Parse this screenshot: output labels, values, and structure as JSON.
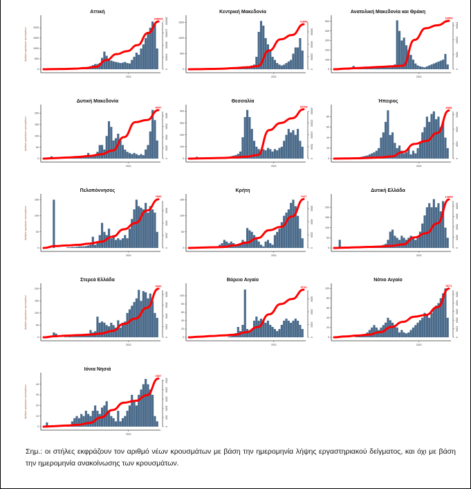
{
  "note": "Σημ.:  οι στήλες εκφράζουν τον αριθμό νέων κρουσμάτων με βάση την ημερομηνία λήψης εργαστηριακού δείγματος, και όχι με βάση την ημερομηνία ανακοίνωσης των κρουσμάτων.",
  "colors": {
    "bars": "#4a6a8a",
    "cumulative_line": "#ff0000",
    "title": "#111111"
  },
  "chart_data": [
    {
      "type": "bar+line",
      "title": "Αττική",
      "ylabel": "Αριθμός ημερήσιων κρουσμάτων",
      "x_tick": "2021",
      "yticks": [
        0,
        500,
        1000,
        1500,
        2000
      ],
      "ylim": [
        0,
        2400
      ],
      "y2ticks": [
        0,
        40000,
        80000,
        120000,
        160000
      ],
      "y2lim": [
        0,
        165000
      ],
      "end_label": "158000",
      "bars": [
        0,
        0,
        0,
        0,
        0,
        0,
        0,
        0,
        5,
        10,
        10,
        15,
        20,
        20,
        30,
        40,
        50,
        60,
        80,
        100,
        150,
        200,
        250,
        250,
        300,
        550,
        850,
        650,
        500,
        420,
        380,
        350,
        330,
        300,
        320,
        350,
        300,
        280,
        450,
        600,
        800,
        700,
        1000,
        1200,
        1500,
        1800,
        2000,
        2300,
        2200,
        1000
      ],
      "cumulative": [
        0,
        500,
        1000,
        2000,
        4000,
        8000,
        30000,
        50000,
        60000,
        80000,
        120000,
        158000
      ]
    },
    {
      "type": "bar+line",
      "title": "Κεντρική Μακεδονία",
      "ylabel": "",
      "x_tick": "2021",
      "yticks": [
        0,
        500,
        1000,
        1500
      ],
      "ylim": [
        0,
        1600
      ],
      "y2ticks": [
        0,
        20000,
        40000,
        60000
      ],
      "y2lim": [
        0,
        80000
      ],
      "end_label": "72050",
      "bars": [
        0,
        0,
        0,
        0,
        0,
        0,
        0,
        0,
        0,
        0,
        5,
        5,
        10,
        10,
        10,
        20,
        20,
        30,
        40,
        50,
        60,
        70,
        80,
        80,
        90,
        100,
        100,
        120,
        150,
        400,
        1200,
        1550,
        1400,
        1000,
        800,
        600,
        400,
        300,
        200,
        150,
        120,
        150,
        200,
        250,
        300,
        500,
        700,
        700,
        1000,
        600
      ],
      "cumulative": [
        0,
        200,
        500,
        1000,
        2000,
        3000,
        5000,
        30000,
        48000,
        55000,
        72050
      ]
    },
    {
      "type": "bar+line",
      "title": "Ανατολική Μακεδονία και Θράκη",
      "ylabel": "",
      "x_tick": "2021",
      "yticks": [
        0,
        100,
        200,
        300,
        400,
        500
      ],
      "ylim": [
        0,
        520
      ],
      "y2ticks": [
        0,
        5000,
        10000,
        15000
      ],
      "y2lim": [
        0,
        17000
      ],
      "end_label": "16500",
      "bars": [
        0,
        0,
        0,
        0,
        0,
        5,
        10,
        20,
        35,
        10,
        5,
        5,
        5,
        10,
        15,
        20,
        20,
        15,
        15,
        15,
        15,
        20,
        20,
        20,
        20,
        30,
        50,
        510,
        400,
        300,
        330,
        250,
        200,
        150,
        100,
        60,
        40,
        30,
        25,
        20,
        30,
        40,
        50,
        60,
        70,
        80,
        90,
        100,
        160,
        50
      ],
      "cumulative": [
        0,
        200,
        400,
        600,
        800,
        1000,
        1200,
        10000,
        14000,
        15000,
        16500
      ]
    },
    {
      "type": "bar+line",
      "title": "Δυτική Μακεδονία",
      "ylabel": "Αριθμός ημερήσιων κρουσμάτων",
      "x_tick": "2021",
      "yticks": [
        0,
        50,
        100,
        150,
        200
      ],
      "ylim": [
        0,
        220
      ],
      "y2ticks": [
        0,
        2000,
        4000,
        6000,
        8000
      ],
      "y2lim": [
        0,
        9300
      ],
      "end_label": "9047",
      "bars": [
        0,
        0,
        2,
        10,
        2,
        0,
        0,
        0,
        0,
        2,
        3,
        3,
        4,
        5,
        5,
        5,
        6,
        8,
        10,
        25,
        10,
        10,
        15,
        30,
        60,
        60,
        40,
        100,
        165,
        140,
        80,
        90,
        110,
        80,
        60,
        40,
        30,
        25,
        20,
        25,
        20,
        15,
        20,
        15,
        40,
        60,
        120,
        215,
        170,
        80
      ],
      "cumulative": [
        0,
        100,
        200,
        300,
        500,
        800,
        1500,
        4000,
        6800,
        7200,
        9047
      ]
    },
    {
      "type": "bar+line",
      "title": "Θεσσαλία",
      "ylabel": "",
      "x_tick": "2021",
      "yticks": [
        0,
        100,
        200,
        300,
        400
      ],
      "ylim": [
        0,
        420
      ],
      "y2ticks": [
        0,
        5000,
        10000,
        15000,
        20000
      ],
      "y2lim": [
        0,
        21000
      ],
      "end_label": "20768",
      "bars": [
        0,
        0,
        0,
        15,
        0,
        0,
        10,
        0,
        0,
        0,
        5,
        5,
        5,
        10,
        10,
        10,
        10,
        15,
        20,
        25,
        30,
        40,
        60,
        180,
        350,
        410,
        350,
        250,
        150,
        100,
        80,
        60,
        80,
        70,
        90,
        80,
        60,
        80,
        70,
        90,
        100,
        150,
        200,
        250,
        220,
        240,
        200,
        250,
        150,
        100
      ],
      "cumulative": [
        0,
        100,
        200,
        300,
        500,
        800,
        1500,
        12000,
        15000,
        17000,
        20768
      ]
    },
    {
      "type": "bar+line",
      "title": "Ήπειρος",
      "ylabel": "",
      "x_tick": "2021",
      "yticks": [
        0,
        20,
        40,
        60,
        80
      ],
      "ylim": [
        0,
        95
      ],
      "y2ticks": [
        0,
        2000,
        4000,
        6000
      ],
      "y2lim": [
        0,
        6800
      ],
      "end_label": "6558",
      "bars": [
        0,
        0,
        2,
        0,
        0,
        0,
        0,
        0,
        0,
        1,
        2,
        3,
        4,
        5,
        6,
        8,
        10,
        12,
        15,
        20,
        40,
        50,
        70,
        92,
        45,
        50,
        30,
        20,
        25,
        15,
        10,
        12,
        20,
        8,
        15,
        10,
        20,
        30,
        50,
        60,
        80,
        70,
        85,
        90,
        75,
        80,
        60,
        70,
        40,
        20
      ],
      "cumulative": [
        0,
        20,
        50,
        100,
        150,
        300,
        900,
        2000,
        2400,
        3500,
        6558
      ]
    },
    {
      "type": "bar+line",
      "title": "Πελοπόννησος",
      "ylabel": "Αριθμός ημερήσιων κρουσμάτων",
      "x_tick": "2021",
      "yticks": [
        0,
        50,
        100,
        150
      ],
      "ylim": [
        0,
        155
      ],
      "y2ticks": [
        0,
        2000,
        4000,
        6000
      ],
      "y2lim": [
        0,
        8000
      ],
      "end_label": "7806",
      "bars": [
        0,
        0,
        0,
        0,
        150,
        0,
        0,
        0,
        0,
        0,
        2,
        2,
        3,
        3,
        4,
        5,
        5,
        5,
        6,
        8,
        10,
        35,
        10,
        20,
        40,
        78,
        50,
        40,
        60,
        30,
        40,
        25,
        30,
        25,
        30,
        40,
        30,
        60,
        90,
        120,
        150,
        130,
        125,
        120,
        140,
        110,
        130,
        120,
        110,
        50
      ],
      "cumulative": [
        0,
        300,
        400,
        500,
        700,
        1000,
        1800,
        3000,
        4000,
        6000,
        7806
      ]
    },
    {
      "type": "bar+line",
      "title": "Κρήτη",
      "ylabel": "",
      "x_tick": "2021",
      "yticks": [
        0,
        50,
        100,
        150
      ],
      "ylim": [
        0,
        155
      ],
      "y2ticks": [
        0,
        2000,
        4000,
        6000
      ],
      "y2lim": [
        0,
        7600
      ],
      "end_label": "7447",
      "bars": [
        0,
        0,
        0,
        0,
        0,
        0,
        0,
        0,
        0,
        1,
        2,
        3,
        5,
        10,
        15,
        25,
        20,
        15,
        20,
        15,
        10,
        12,
        15,
        25,
        20,
        62,
        55,
        50,
        40,
        30,
        20,
        10,
        5,
        20,
        25,
        15,
        10,
        40,
        50,
        60,
        80,
        100,
        110,
        120,
        140,
        150,
        130,
        100,
        60,
        30
      ],
      "cumulative": [
        0,
        50,
        100,
        150,
        400,
        800,
        1500,
        2700,
        3200,
        4800,
        7447
      ]
    },
    {
      "type": "bar+line",
      "title": "Δυτική Ελλάδα",
      "ylabel": "",
      "x_tick": "2021",
      "yticks": [
        0,
        50,
        100,
        150,
        200
      ],
      "ylim": [
        0,
        245
      ],
      "y2ticks": [
        0,
        3000,
        6000,
        9000,
        12000
      ],
      "y2lim": [
        0,
        14200
      ],
      "end_label": "13808",
      "bars": [
        0,
        0,
        40,
        0,
        0,
        0,
        0,
        0,
        0,
        0,
        1,
        1,
        2,
        2,
        3,
        3,
        4,
        5,
        6,
        8,
        10,
        15,
        20,
        40,
        80,
        90,
        60,
        50,
        40,
        60,
        50,
        40,
        50,
        60,
        50,
        40,
        60,
        80,
        120,
        160,
        200,
        220,
        200,
        240,
        200,
        220,
        180,
        230,
        100,
        50
      ],
      "cumulative": [
        0,
        100,
        200,
        300,
        400,
        600,
        1000,
        3000,
        4200,
        7000,
        13808
      ]
    },
    {
      "type": "bar+line",
      "title": "Στερεά Ελλάδα",
      "ylabel": "Αριθμός ημερήσιων κρουσμάτων",
      "x_tick": "2021",
      "yticks": [
        0,
        50,
        100,
        150,
        200
      ],
      "ylim": [
        0,
        205
      ],
      "y2ticks": [
        0,
        2000,
        4000,
        6000,
        8000
      ],
      "y2lim": [
        0,
        9300
      ],
      "end_label": "9060",
      "bars": [
        0,
        0,
        0,
        0,
        20,
        15,
        0,
        0,
        0,
        2,
        2,
        3,
        3,
        4,
        5,
        5,
        6,
        8,
        10,
        15,
        30,
        20,
        25,
        85,
        60,
        65,
        60,
        50,
        45,
        60,
        50,
        40,
        70,
        40,
        60,
        65,
        100,
        115,
        130,
        145,
        160,
        195,
        150,
        190,
        185,
        160,
        180,
        150,
        100,
        80
      ],
      "cumulative": [
        0,
        200,
        300,
        400,
        500,
        700,
        1200,
        2500,
        3500,
        5500,
        9060
      ]
    },
    {
      "type": "bar+line",
      "title": "Βόρειο Αιγαίο",
      "ylabel": "",
      "x_tick": "2021",
      "yticks": [
        0,
        20,
        40,
        60,
        80,
        100
      ],
      "ylim": [
        0,
        120
      ],
      "y2ticks": [
        0,
        1000,
        2000,
        3000
      ],
      "y2lim": [
        0,
        3900
      ],
      "end_label": "3722",
      "bars": [
        0,
        0,
        0,
        0,
        0,
        0,
        0,
        0,
        0,
        0,
        0,
        0,
        0,
        0,
        0,
        0,
        0,
        2,
        3,
        5,
        10,
        25,
        15,
        30,
        115,
        20,
        15,
        20,
        40,
        50,
        40,
        45,
        40,
        35,
        40,
        30,
        25,
        20,
        15,
        20,
        30,
        40,
        45,
        40,
        35,
        40,
        45,
        40,
        30,
        20
      ],
      "cumulative": [
        0,
        50,
        100,
        150,
        200,
        400,
        800,
        1800,
        2600,
        3000,
        3722
      ]
    },
    {
      "type": "bar+line",
      "title": "Νότιο Αιγαίο",
      "ylabel": "",
      "x_tick": "2021",
      "yticks": [
        0,
        20,
        40,
        60,
        80,
        100
      ],
      "ylim": [
        0,
        102
      ],
      "y2ticks": [
        0,
        1000,
        2000,
        3000,
        4000,
        5000
      ],
      "y2lim": [
        0,
        5800
      ],
      "end_label": "5671",
      "bars": [
        0,
        0,
        0,
        0,
        0,
        0,
        0,
        0,
        0,
        1,
        2,
        3,
        4,
        5,
        10,
        15,
        20,
        25,
        20,
        15,
        20,
        25,
        30,
        40,
        35,
        30,
        25,
        20,
        10,
        15,
        10,
        8,
        10,
        15,
        20,
        25,
        30,
        35,
        40,
        50,
        45,
        40,
        50,
        60,
        65,
        70,
        80,
        90,
        100,
        40
      ],
      "cumulative": [
        0,
        100,
        200,
        300,
        600,
        1200,
        1800,
        2400,
        2600,
        3500,
        5671
      ]
    },
    {
      "type": "bar+line",
      "title": "Ιόνια Νησιά",
      "ylabel": "Αριθμός ημερήσιων κρουσμάτων",
      "x_tick": "2021",
      "yticks": [
        0,
        10,
        20,
        30,
        40
      ],
      "ylim": [
        0,
        47
      ],
      "y2ticks": [
        0,
        500,
        1000,
        1500,
        2000,
        2500
      ],
      "y2lim": [
        0,
        2700
      ],
      "end_label": "2607",
      "bars": [
        0,
        4,
        0,
        1,
        1,
        1,
        1,
        0,
        0,
        0,
        1,
        2,
        5,
        8,
        10,
        8,
        12,
        10,
        15,
        12,
        10,
        15,
        20,
        15,
        12,
        18,
        20,
        24,
        15,
        10,
        8,
        5,
        15,
        5,
        8,
        10,
        15,
        20,
        30,
        25,
        20,
        30,
        35,
        40,
        45,
        40,
        35,
        30,
        10,
        5
      ],
      "cumulative": [
        0,
        30,
        60,
        100,
        200,
        500,
        900,
        1300,
        1400,
        1700,
        2607
      ]
    }
  ]
}
